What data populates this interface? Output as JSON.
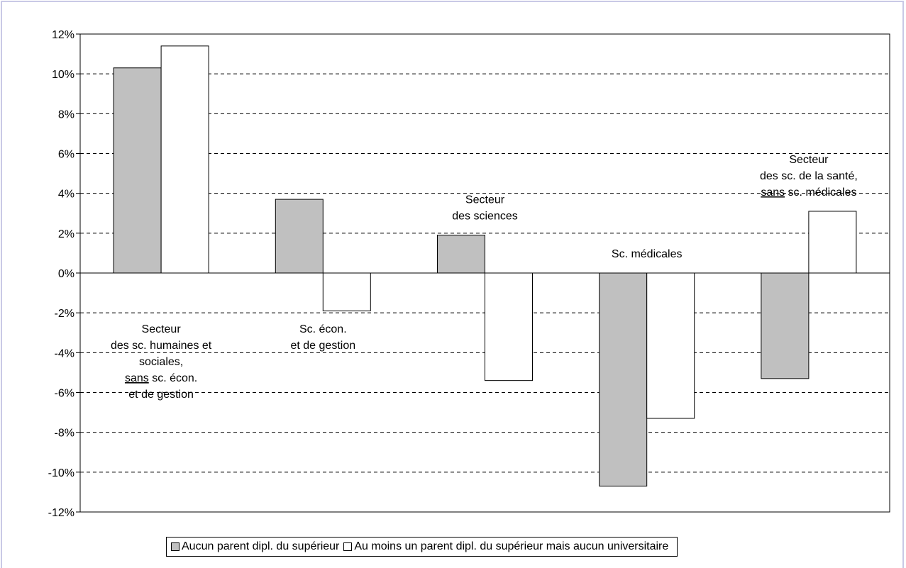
{
  "chart_data": {
    "type": "bar",
    "title": "",
    "xlabel": "",
    "ylabel": "",
    "ylim": [
      -12,
      12
    ],
    "ytick_step": 2,
    "yticks": [
      "12%",
      "10%",
      "8%",
      "6%",
      "4%",
      "2%",
      "0%",
      "-2%",
      "-4%",
      "-6%",
      "-8%",
      "-10%",
      "-12%"
    ],
    "grid": "dashed horizontal",
    "legend_position": "bottom",
    "categories": [
      {
        "lines": [
          "Secteur",
          "des sc. humaines et",
          "sociales,",
          "sans sc. écon.",
          "et de gestion"
        ],
        "label_side": "below"
      },
      {
        "lines": [
          "Sc. écon.",
          "et de gestion"
        ],
        "label_side": "below"
      },
      {
        "lines": [
          "Secteur",
          "des sciences"
        ],
        "label_side": "above"
      },
      {
        "lines": [
          "Sc. médicales"
        ],
        "label_side": "above"
      },
      {
        "lines": [
          "Secteur",
          "des sc. de la santé,",
          "sans sc. médicales"
        ],
        "label_side": "above"
      }
    ],
    "series": [
      {
        "name": "Aucun parent dipl. du supérieur",
        "color": "#c0c0c0",
        "values": [
          10.3,
          3.7,
          1.9,
          -10.7,
          -5.3
        ]
      },
      {
        "name": "Au moins un parent dipl. du supérieur mais aucun universitaire",
        "color": "#ffffff",
        "values": [
          11.4,
          -1.9,
          -5.4,
          -7.3,
          3.1
        ]
      }
    ]
  },
  "legend": {
    "items": [
      "Aucun parent dipl. du supérieur",
      "Au moins un parent dipl. du supérieur mais aucun universitaire"
    ]
  }
}
